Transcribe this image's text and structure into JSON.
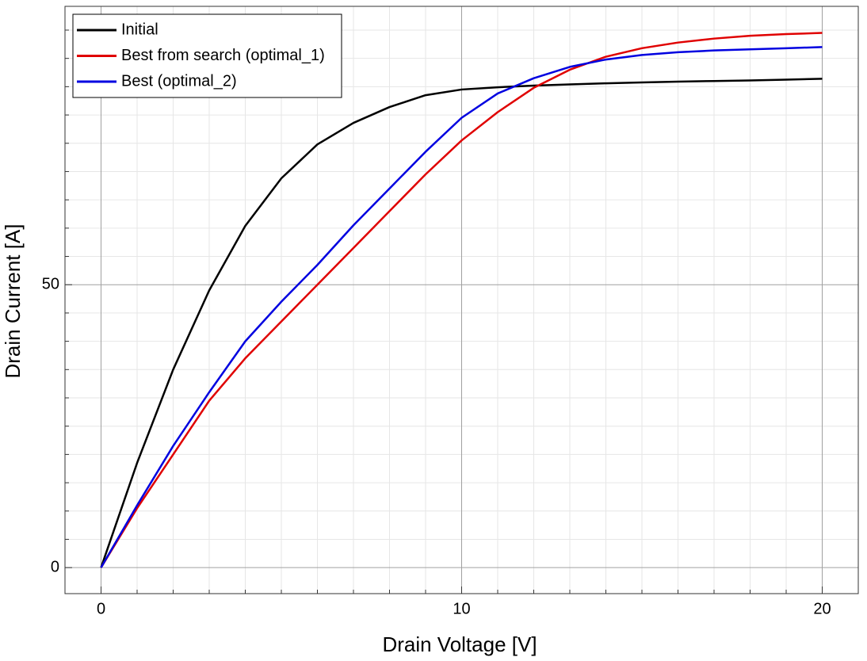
{
  "chart_data": {
    "type": "line",
    "x_label": "Drain Voltage [V]",
    "y_label": "Drain Current [A]",
    "x": [
      0,
      1,
      2,
      3,
      4,
      5,
      6,
      7,
      8,
      9,
      10,
      11,
      12,
      13,
      14,
      15,
      16,
      17,
      18,
      19,
      20
    ],
    "series": [
      {
        "name": "Initial",
        "color": "#000000",
        "values": [
          0,
          18.5,
          35,
          49,
          60.4,
          68.8,
          74.8,
          78.6,
          81.4,
          83.5,
          84.5,
          84.9,
          85.2,
          85.4,
          85.6,
          85.75,
          85.9,
          86.0,
          86.1,
          86.25,
          86.4
        ]
      },
      {
        "name": "Best from search (optimal_1)",
        "color": "#e00000",
        "values": [
          0,
          10.5,
          20,
          29.5,
          37,
          43.5,
          50,
          56.5,
          63,
          69.5,
          75.5,
          80.5,
          84.8,
          88,
          90.3,
          91.8,
          92.8,
          93.5,
          94,
          94.3,
          94.5
        ]
      },
      {
        "name": "Best (optimal_2)",
        "color": "#0000e0",
        "values": [
          0,
          11,
          21.5,
          31,
          40,
          47,
          53.5,
          60.5,
          67,
          73.5,
          79.5,
          83.8,
          86.5,
          88.5,
          89.8,
          90.6,
          91.1,
          91.4,
          91.6,
          91.8,
          92
        ]
      }
    ],
    "xlim": [
      -1,
      21
    ],
    "ylim": [
      -4.6,
      99.2
    ],
    "xticks": [
      0,
      10,
      20
    ],
    "yticks": [
      0,
      50
    ],
    "x_minor_ticks": [
      1,
      2,
      3,
      4,
      5,
      6,
      7,
      8,
      9,
      11,
      12,
      13,
      14,
      15,
      16,
      17,
      18,
      19,
      21
    ],
    "y_minor_ticks": [
      5,
      10,
      15,
      20,
      25,
      30,
      35,
      40,
      45,
      55,
      60,
      65,
      70,
      75,
      80,
      85,
      90,
      95
    ],
    "grid": true,
    "legend": "upper left"
  }
}
